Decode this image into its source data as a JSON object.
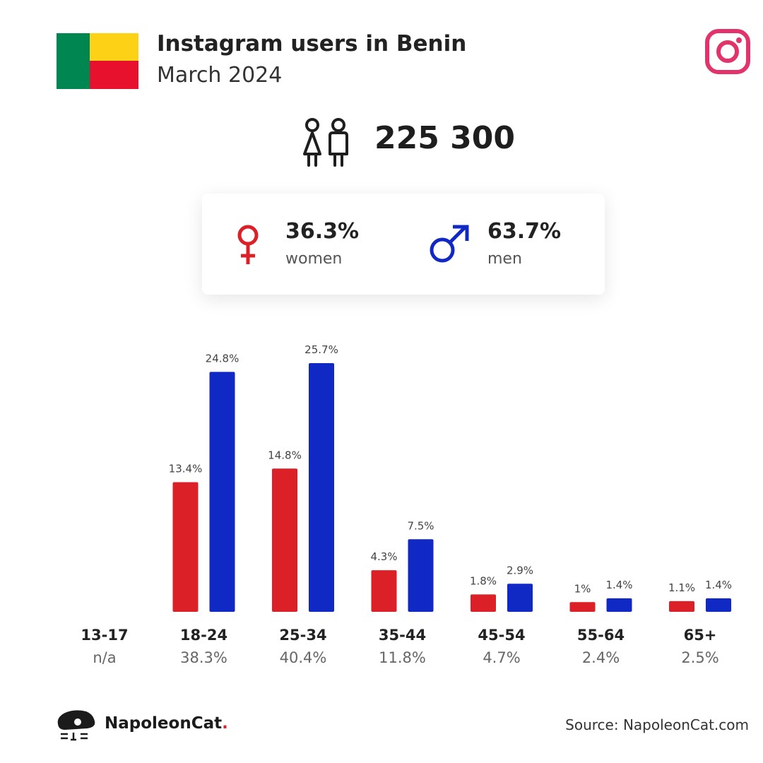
{
  "header": {
    "title": "Instagram users in Benin",
    "subtitle": "March 2024",
    "flag_colors": {
      "green": "#008751",
      "yellow": "#FCD116",
      "red": "#E8112D"
    },
    "platform_icon": "instagram-icon"
  },
  "total": {
    "icon": "people-icon",
    "value": "225 300"
  },
  "gender": {
    "women": {
      "pct": "36.3%",
      "label": "women",
      "icon": "female-symbol-icon",
      "color": "#dc2027"
    },
    "men": {
      "pct": "63.7%",
      "label": "men",
      "icon": "male-symbol-icon",
      "color": "#1129c4"
    }
  },
  "chart_data": {
    "type": "bar",
    "categories": [
      "13-17",
      "18-24",
      "25-34",
      "35-44",
      "45-54",
      "55-64",
      "65+"
    ],
    "totals": [
      "n/a",
      "38.3%",
      "40.4%",
      "11.8%",
      "4.7%",
      "2.4%",
      "2.5%"
    ],
    "series": [
      {
        "name": "women",
        "color": "#dc2027",
        "values": [
          null,
          13.4,
          14.8,
          4.3,
          1.8,
          1.0,
          1.1
        ],
        "labels": [
          "",
          "13.4%",
          "14.8%",
          "4.3%",
          "1.8%",
          "1%",
          "1.1%"
        ]
      },
      {
        "name": "men",
        "color": "#1129c4",
        "values": [
          null,
          24.8,
          25.7,
          7.5,
          2.9,
          1.4,
          1.4
        ],
        "labels": [
          "",
          "24.8%",
          "25.7%",
          "7.5%",
          "2.9%",
          "1.4%",
          "1.4%"
        ]
      }
    ],
    "ylim": [
      0,
      25.7
    ],
    "grid": false
  },
  "footer": {
    "brand": "NapoleonCat",
    "brand_dot": ".",
    "logo_icon": "napoleoncat-logo-icon",
    "source": "Source: NapoleonCat.com"
  }
}
